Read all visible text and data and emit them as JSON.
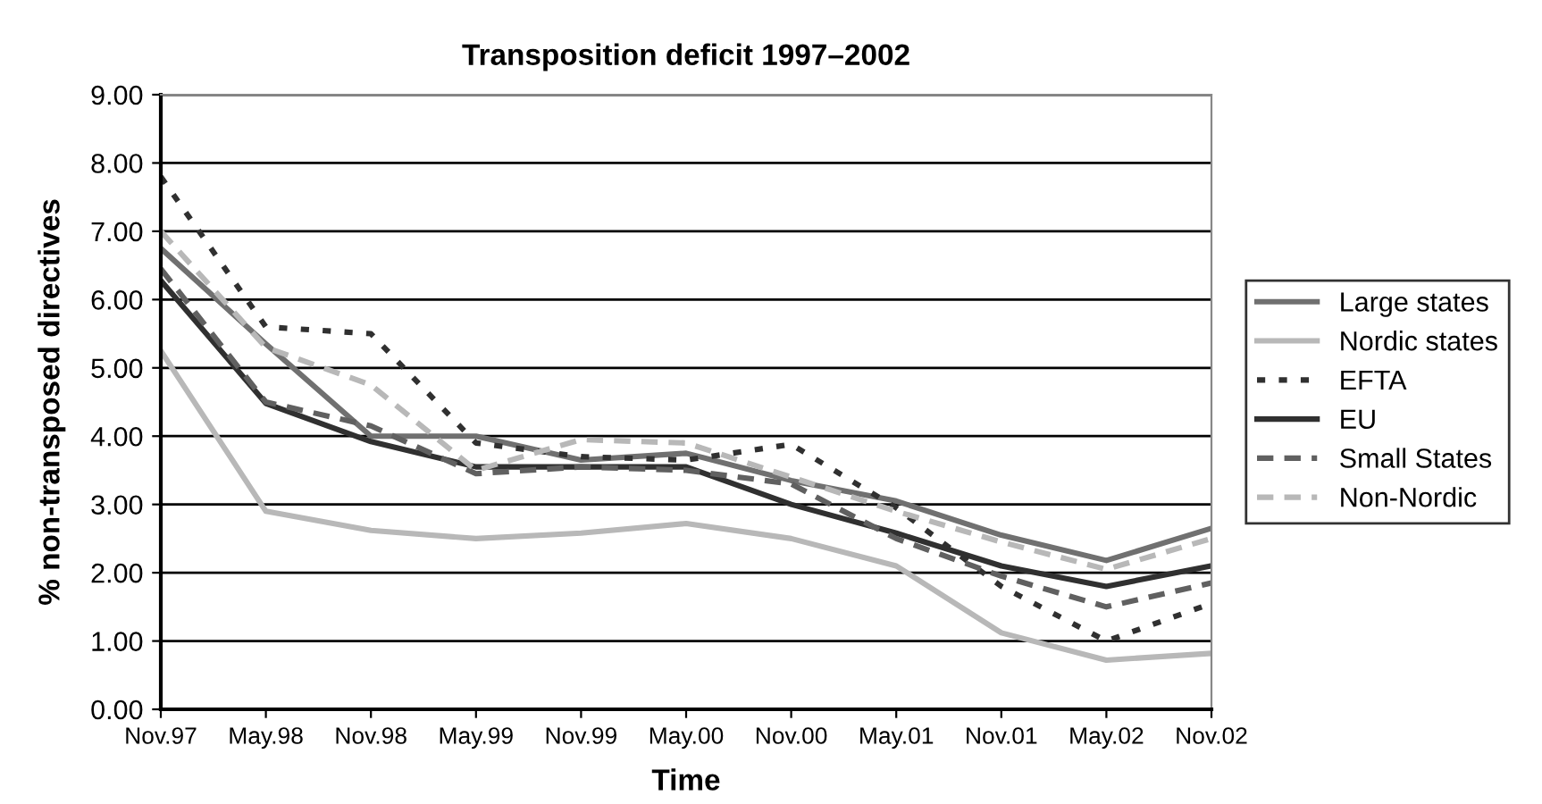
{
  "chart_data": {
    "type": "line",
    "title": "Transposition deficit 1997–2002",
    "xlabel": "Time",
    "ylabel": "% non-transposed directives",
    "categories": [
      "Nov.97",
      "May.98",
      "Nov.98",
      "May.99",
      "Nov.99",
      "May.00",
      "Nov.00",
      "May.01",
      "Nov.01",
      "May.02",
      "Nov.02"
    ],
    "ylim": [
      0,
      9
    ],
    "yticks": [
      {
        "value": 0,
        "label": "0.00"
      },
      {
        "value": 1,
        "label": "1.00"
      },
      {
        "value": 2,
        "label": "2.00"
      },
      {
        "value": 3,
        "label": "3.00"
      },
      {
        "value": 4,
        "label": "4.00"
      },
      {
        "value": 5,
        "label": "5.00"
      },
      {
        "value": 6,
        "label": "6.00"
      },
      {
        "value": 7,
        "label": "7.00"
      },
      {
        "value": 8,
        "label": "8.00"
      },
      {
        "value": 9,
        "label": "9.00"
      }
    ],
    "grid": "y",
    "legend": "right",
    "marker": "none",
    "series": [
      {
        "name": "Large states",
        "color": "#707070",
        "line_style": "solid",
        "values": [
          6.75,
          5.35,
          4.0,
          4.0,
          3.65,
          3.75,
          3.35,
          3.05,
          2.55,
          2.18,
          2.65
        ]
      },
      {
        "name": "Nordic states",
        "color": "#b8b8b8",
        "line_style": "solid",
        "values": [
          5.25,
          2.9,
          2.62,
          2.5,
          2.58,
          2.72,
          2.5,
          2.1,
          1.12,
          0.72,
          0.82
        ]
      },
      {
        "name": "EFTA",
        "color": "#303030",
        "line_style": "dotted",
        "values": [
          7.8,
          5.6,
          5.5,
          3.9,
          3.7,
          3.65,
          3.88,
          2.95,
          1.8,
          1.0,
          1.55
        ]
      },
      {
        "name": "EU",
        "color": "#303030",
        "line_style": "solid",
        "values": [
          6.28,
          4.48,
          3.92,
          3.55,
          3.55,
          3.55,
          3.0,
          2.58,
          2.1,
          1.8,
          2.1
        ]
      },
      {
        "name": "Small States",
        "color": "#606060",
        "line_style": "dashed",
        "values": [
          6.45,
          4.5,
          4.15,
          3.45,
          3.55,
          3.5,
          3.3,
          2.5,
          1.95,
          1.5,
          1.85
        ]
      },
      {
        "name": "Non-Nordic",
        "color": "#b8b8b8",
        "line_style": "dashed",
        "values": [
          7.0,
          5.3,
          4.75,
          3.5,
          3.95,
          3.9,
          3.4,
          2.9,
          2.45,
          2.05,
          2.5
        ]
      }
    ]
  }
}
